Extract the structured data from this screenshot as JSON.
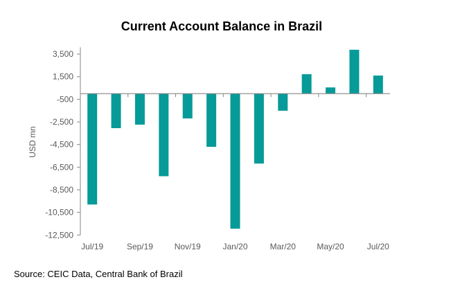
{
  "chart_data": {
    "type": "bar",
    "title": "Current Account Balance in Brazil",
    "xlabel": "",
    "ylabel": "USD mn",
    "categories": [
      "Jul/19",
      "Aug/19",
      "Sep/19",
      "Oct/19",
      "Nov/19",
      "Dec/19",
      "Jan/20",
      "Feb/20",
      "Mar/20",
      "Apr/20",
      "May/20",
      "Jun/20",
      "Jul/20"
    ],
    "x_tick_labels": [
      "Jul/19",
      "Sep/19",
      "Nov/19",
      "Jan/20",
      "Mar/20",
      "May/20",
      "Jul/20"
    ],
    "values": [
      -9800,
      -3050,
      -2740,
      -7300,
      -2190,
      -4700,
      -11940,
      -6180,
      -1510,
      1720,
      550,
      3880,
      1600
    ],
    "y_ticks": [
      3500,
      1500,
      -500,
      -2500,
      -4500,
      -6500,
      -8500,
      -10500,
      -12500
    ],
    "y_tick_labels": [
      "3,500",
      "1,500",
      "-500",
      "-2,500",
      "-4,500",
      "-6,500",
      "-8,500",
      "-10,500",
      "-12,500"
    ],
    "ylim": [
      -12500,
      4100
    ],
    "grid": false,
    "bar_color": "#069a98"
  },
  "source": "Source: CEIC Data, Central Bank of Brazil"
}
